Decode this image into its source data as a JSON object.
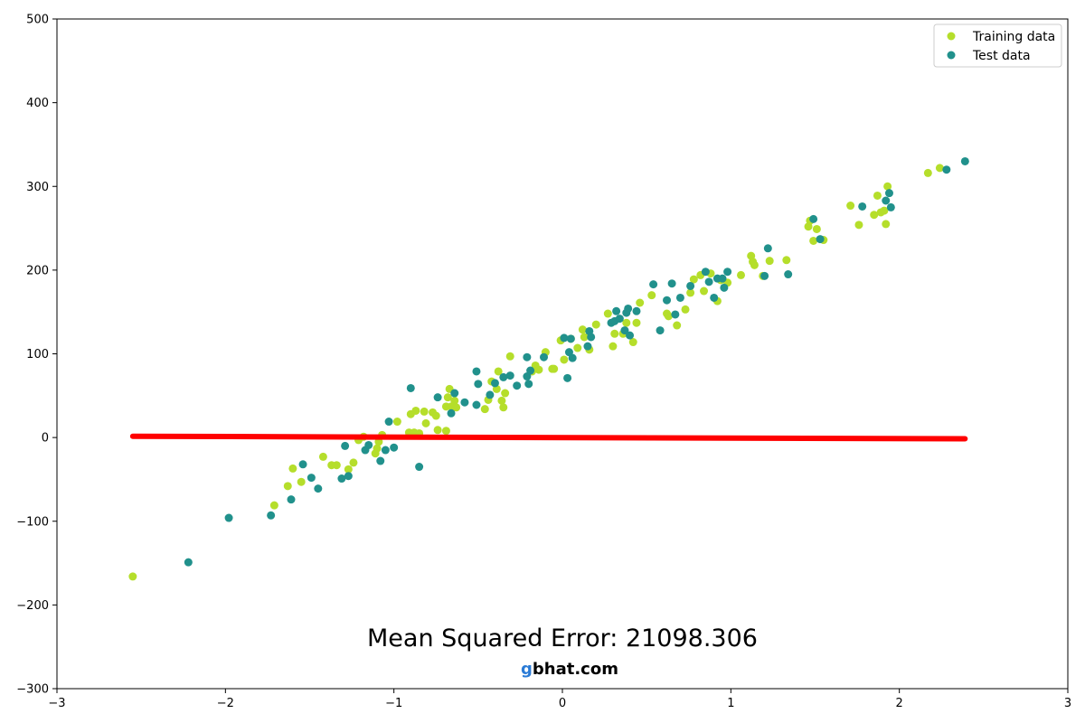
{
  "chart_data": {
    "type": "scatter",
    "title": "",
    "xlabel": "",
    "ylabel": "",
    "xlim": [
      -3,
      3
    ],
    "ylim": [
      -300,
      500
    ],
    "x_ticks": [
      -3,
      -2,
      -1,
      0,
      1,
      2,
      3
    ],
    "x_tick_labels": [
      "−3",
      "−2",
      "−1",
      "0",
      "1",
      "2",
      "3"
    ],
    "y_ticks": [
      -300,
      -200,
      -100,
      0,
      100,
      200,
      300,
      400,
      500
    ],
    "y_tick_labels": [
      "−300",
      "−200",
      "−100",
      "0",
      "100",
      "200",
      "300",
      "400",
      "500"
    ],
    "grid": false,
    "legend_position": "top-right",
    "series": [
      {
        "name": "Training data",
        "kind": "scatter",
        "color": "#b5de2b",
        "points": [
          [
            -2.55,
            -166
          ],
          [
            -1.71,
            -81
          ],
          [
            -1.63,
            -58
          ],
          [
            -1.6,
            -37
          ],
          [
            -1.55,
            -53
          ],
          [
            -1.42,
            -23
          ],
          [
            -1.37,
            -33
          ],
          [
            -1.34,
            -33
          ],
          [
            -1.27,
            -38
          ],
          [
            -1.24,
            -30
          ],
          [
            -1.21,
            -3
          ],
          [
            -1.18,
            1
          ],
          [
            -1.11,
            -19
          ],
          [
            -1.1,
            -13
          ],
          [
            -1.09,
            -5
          ],
          [
            -1.07,
            3
          ],
          [
            -0.98,
            19
          ],
          [
            -0.91,
            6
          ],
          [
            -0.9,
            28
          ],
          [
            -0.88,
            6
          ],
          [
            -0.87,
            32
          ],
          [
            -0.85,
            5
          ],
          [
            -0.82,
            31
          ],
          [
            -0.81,
            17
          ],
          [
            -0.77,
            30
          ],
          [
            -0.75,
            26
          ],
          [
            -0.74,
            9
          ],
          [
            -0.69,
            8
          ],
          [
            -0.69,
            37
          ],
          [
            -0.68,
            48
          ],
          [
            -0.67,
            58
          ],
          [
            -0.66,
            37
          ],
          [
            -0.64,
            44
          ],
          [
            -0.63,
            36
          ],
          [
            -0.46,
            34
          ],
          [
            -0.44,
            45
          ],
          [
            -0.42,
            67
          ],
          [
            -0.39,
            58
          ],
          [
            -0.38,
            79
          ],
          [
            -0.36,
            44
          ],
          [
            -0.35,
            36
          ],
          [
            -0.34,
            53
          ],
          [
            -0.31,
            97
          ],
          [
            -0.18,
            79
          ],
          [
            -0.16,
            86
          ],
          [
            -0.14,
            81
          ],
          [
            -0.1,
            102
          ],
          [
            -0.06,
            82
          ],
          [
            -0.05,
            82
          ],
          [
            -0.01,
            116
          ],
          [
            0.01,
            93
          ],
          [
            0.05,
            118
          ],
          [
            0.09,
            107
          ],
          [
            0.12,
            129
          ],
          [
            0.13,
            120
          ],
          [
            0.16,
            105
          ],
          [
            0.2,
            135
          ],
          [
            0.27,
            148
          ],
          [
            0.3,
            109
          ],
          [
            0.31,
            124
          ],
          [
            0.36,
            124
          ],
          [
            0.38,
            137
          ],
          [
            0.42,
            114
          ],
          [
            0.44,
            137
          ],
          [
            0.46,
            161
          ],
          [
            0.53,
            170
          ],
          [
            0.62,
            148
          ],
          [
            0.63,
            145
          ],
          [
            0.68,
            134
          ],
          [
            0.73,
            153
          ],
          [
            0.76,
            173
          ],
          [
            0.78,
            189
          ],
          [
            0.82,
            194
          ],
          [
            0.84,
            175
          ],
          [
            0.88,
            196
          ],
          [
            0.92,
            163
          ],
          [
            0.94,
            188
          ],
          [
            0.98,
            185
          ],
          [
            1.06,
            194
          ],
          [
            1.12,
            217
          ],
          [
            1.13,
            210
          ],
          [
            1.14,
            206
          ],
          [
            1.19,
            193
          ],
          [
            1.23,
            211
          ],
          [
            1.33,
            212
          ],
          [
            1.46,
            252
          ],
          [
            1.47,
            259
          ],
          [
            1.49,
            235
          ],
          [
            1.51,
            249
          ],
          [
            1.55,
            236
          ],
          [
            1.71,
            277
          ],
          [
            1.76,
            254
          ],
          [
            1.85,
            266
          ],
          [
            1.87,
            289
          ],
          [
            1.89,
            269
          ],
          [
            1.91,
            271
          ],
          [
            1.92,
            255
          ],
          [
            1.93,
            300
          ],
          [
            2.17,
            316
          ],
          [
            2.24,
            322
          ]
        ]
      },
      {
        "name": "Test data",
        "kind": "scatter",
        "color": "#21918c",
        "points": [
          [
            -2.22,
            -149
          ],
          [
            -1.98,
            -96
          ],
          [
            -1.73,
            -93
          ],
          [
            -1.61,
            -74
          ],
          [
            -1.54,
            -32
          ],
          [
            -1.49,
            -48
          ],
          [
            -1.45,
            -61
          ],
          [
            -1.31,
            -49
          ],
          [
            -1.29,
            -10
          ],
          [
            -1.27,
            -46
          ],
          [
            -1.17,
            -15
          ],
          [
            -1.15,
            -9
          ],
          [
            -1.08,
            -28
          ],
          [
            -1.05,
            -15
          ],
          [
            -1.03,
            19
          ],
          [
            -1.0,
            -12
          ],
          [
            -0.9,
            59
          ],
          [
            -0.85,
            -35
          ],
          [
            -0.74,
            48
          ],
          [
            -0.66,
            29
          ],
          [
            -0.64,
            53
          ],
          [
            -0.58,
            42
          ],
          [
            -0.51,
            79
          ],
          [
            -0.51,
            39
          ],
          [
            -0.5,
            64
          ],
          [
            -0.43,
            51
          ],
          [
            -0.4,
            65
          ],
          [
            -0.35,
            72
          ],
          [
            -0.31,
            74
          ],
          [
            -0.27,
            62
          ],
          [
            -0.21,
            96
          ],
          [
            -0.21,
            73
          ],
          [
            -0.2,
            64
          ],
          [
            -0.19,
            80
          ],
          [
            -0.11,
            96
          ],
          [
            0.01,
            119
          ],
          [
            0.03,
            71
          ],
          [
            0.04,
            102
          ],
          [
            0.05,
            118
          ],
          [
            0.06,
            95
          ],
          [
            0.15,
            109
          ],
          [
            0.16,
            127
          ],
          [
            0.17,
            120
          ],
          [
            0.29,
            137
          ],
          [
            0.31,
            139
          ],
          [
            0.32,
            151
          ],
          [
            0.34,
            142
          ],
          [
            0.37,
            128
          ],
          [
            0.38,
            149
          ],
          [
            0.39,
            154
          ],
          [
            0.4,
            122
          ],
          [
            0.44,
            151
          ],
          [
            0.54,
            183
          ],
          [
            0.58,
            128
          ],
          [
            0.62,
            164
          ],
          [
            0.65,
            184
          ],
          [
            0.67,
            147
          ],
          [
            0.7,
            167
          ],
          [
            0.76,
            181
          ],
          [
            0.85,
            198
          ],
          [
            0.87,
            186
          ],
          [
            0.9,
            167
          ],
          [
            0.92,
            190
          ],
          [
            0.95,
            190
          ],
          [
            0.96,
            179
          ],
          [
            0.98,
            198
          ],
          [
            1.2,
            193
          ],
          [
            1.22,
            226
          ],
          [
            1.34,
            195
          ],
          [
            1.49,
            261
          ],
          [
            1.53,
            237
          ],
          [
            1.78,
            276
          ],
          [
            1.92,
            283
          ],
          [
            1.94,
            292
          ],
          [
            1.95,
            275
          ],
          [
            2.28,
            320
          ],
          [
            2.39,
            330
          ]
        ]
      },
      {
        "name": "",
        "kind": "line",
        "color": "#ff0000",
        "points": [
          [
            -2.55,
            1.5
          ],
          [
            2.39,
            -1.5
          ]
        ]
      }
    ]
  },
  "annotations": {
    "mse_label": "Mean Squared Error: 21098.306"
  },
  "watermark": {
    "first_letter": "g",
    "rest": "bhat.com",
    "first_color": "#2b7bd6",
    "rest_color": "#000000"
  }
}
